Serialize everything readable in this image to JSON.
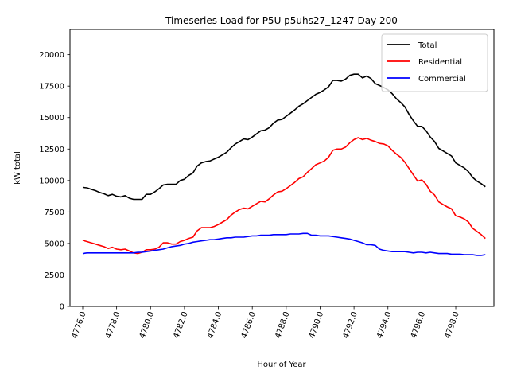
{
  "chart_data": {
    "type": "line",
    "title": "Timeseries Load for P5U p5uhs27_1247  Day 200",
    "xlabel": "Hour of Year",
    "ylabel": "kW total",
    "xlim": [
      4775.25,
      4800.25
    ],
    "ylim": [
      0,
      22000
    ],
    "x_ticks": [
      4776,
      4778,
      4780,
      4782,
      4784,
      4786,
      4788,
      4790,
      4792,
      4794,
      4796,
      4798
    ],
    "x_tick_labels": [
      "4776.0",
      "4778.0",
      "4780.0",
      "4782.0",
      "4784.0",
      "4786.0",
      "4788.0",
      "4790.0",
      "4792.0",
      "4794.0",
      "4796.0",
      "4798.0"
    ],
    "y_ticks": [
      0,
      2500,
      5000,
      7500,
      10000,
      12500,
      15000,
      17500,
      20000
    ],
    "y_tick_labels": [
      "0",
      "2500",
      "5000",
      "7500",
      "10000",
      "12500",
      "15000",
      "17500",
      "20000"
    ],
    "legend_position": "top-right",
    "series": [
      {
        "name": "Total",
        "color": "#000000",
        "points": [
          [
            4776.0,
            9450
          ],
          [
            4776.25,
            9420
          ],
          [
            4776.5,
            9300
          ],
          [
            4776.75,
            9200
          ],
          [
            4777.0,
            9050
          ],
          [
            4777.25,
            8950
          ],
          [
            4777.5,
            8800
          ],
          [
            4777.75,
            8900
          ],
          [
            4778.0,
            8750
          ],
          [
            4778.25,
            8700
          ],
          [
            4778.5,
            8800
          ],
          [
            4778.75,
            8600
          ],
          [
            4779.0,
            8500
          ],
          [
            4779.25,
            8500
          ],
          [
            4779.5,
            8500
          ],
          [
            4779.75,
            8900
          ],
          [
            4780.0,
            8900
          ],
          [
            4780.25,
            9100
          ],
          [
            4780.5,
            9350
          ],
          [
            4780.75,
            9650
          ],
          [
            4781.0,
            9700
          ],
          [
            4781.25,
            9700
          ],
          [
            4781.5,
            9700
          ],
          [
            4781.75,
            10000
          ],
          [
            4782.0,
            10100
          ],
          [
            4782.25,
            10400
          ],
          [
            4782.5,
            10600
          ],
          [
            4782.75,
            11150
          ],
          [
            4783.0,
            11400
          ],
          [
            4783.25,
            11500
          ],
          [
            4783.5,
            11550
          ],
          [
            4783.75,
            11700
          ],
          [
            4784.0,
            11850
          ],
          [
            4784.25,
            12050
          ],
          [
            4784.5,
            12250
          ],
          [
            4784.75,
            12600
          ],
          [
            4785.0,
            12900
          ],
          [
            4785.25,
            13100
          ],
          [
            4785.5,
            13300
          ],
          [
            4785.75,
            13250
          ],
          [
            4786.0,
            13450
          ],
          [
            4786.25,
            13700
          ],
          [
            4786.5,
            13950
          ],
          [
            4786.75,
            14000
          ],
          [
            4787.0,
            14200
          ],
          [
            4787.25,
            14550
          ],
          [
            4787.5,
            14800
          ],
          [
            4787.75,
            14850
          ],
          [
            4788.0,
            15100
          ],
          [
            4788.25,
            15350
          ],
          [
            4788.5,
            15600
          ],
          [
            4788.75,
            15900
          ],
          [
            4789.0,
            16100
          ],
          [
            4789.25,
            16350
          ],
          [
            4789.5,
            16600
          ],
          [
            4789.75,
            16850
          ],
          [
            4790.0,
            17000
          ],
          [
            4790.25,
            17200
          ],
          [
            4790.5,
            17450
          ],
          [
            4790.75,
            17950
          ],
          [
            4791.0,
            17950
          ],
          [
            4791.25,
            17900
          ],
          [
            4791.5,
            18050
          ],
          [
            4791.75,
            18350
          ],
          [
            4792.0,
            18450
          ],
          [
            4792.25,
            18450
          ],
          [
            4792.5,
            18150
          ],
          [
            4792.75,
            18300
          ],
          [
            4793.0,
            18100
          ],
          [
            4793.25,
            17700
          ],
          [
            4793.5,
            17550
          ],
          [
            4793.75,
            17400
          ],
          [
            4794.0,
            17200
          ],
          [
            4794.25,
            16900
          ],
          [
            4794.5,
            16500
          ],
          [
            4794.75,
            16200
          ],
          [
            4795.0,
            15850
          ],
          [
            4795.25,
            15250
          ],
          [
            4795.5,
            14750
          ],
          [
            4795.75,
            14300
          ],
          [
            4796.0,
            14300
          ],
          [
            4796.25,
            13950
          ],
          [
            4796.5,
            13450
          ],
          [
            4796.75,
            13100
          ],
          [
            4797.0,
            12550
          ],
          [
            4797.25,
            12350
          ],
          [
            4797.5,
            12150
          ],
          [
            4797.75,
            11950
          ],
          [
            4798.0,
            11400
          ],
          [
            4798.25,
            11200
          ],
          [
            4798.5,
            11000
          ],
          [
            4798.75,
            10700
          ],
          [
            4799.0,
            10250
          ],
          [
            4799.25,
            9950
          ],
          [
            4799.5,
            9750
          ],
          [
            4799.75,
            9500
          ]
        ]
      },
      {
        "name": "Residential",
        "color": "#ff0000",
        "points": [
          [
            4776.0,
            5250
          ],
          [
            4776.25,
            5150
          ],
          [
            4776.5,
            5050
          ],
          [
            4776.75,
            4950
          ],
          [
            4777.0,
            4850
          ],
          [
            4777.25,
            4750
          ],
          [
            4777.5,
            4600
          ],
          [
            4777.75,
            4700
          ],
          [
            4778.0,
            4550
          ],
          [
            4778.25,
            4500
          ],
          [
            4778.5,
            4550
          ],
          [
            4778.75,
            4400
          ],
          [
            4779.0,
            4250
          ],
          [
            4779.25,
            4200
          ],
          [
            4779.5,
            4300
          ],
          [
            4779.75,
            4500
          ],
          [
            4780.0,
            4500
          ],
          [
            4780.25,
            4550
          ],
          [
            4780.5,
            4700
          ],
          [
            4780.75,
            5050
          ],
          [
            4781.0,
            5050
          ],
          [
            4781.25,
            4950
          ],
          [
            4781.5,
            4950
          ],
          [
            4781.75,
            5150
          ],
          [
            4782.0,
            5250
          ],
          [
            4782.25,
            5400
          ],
          [
            4782.5,
            5500
          ],
          [
            4782.75,
            6000
          ],
          [
            4783.0,
            6250
          ],
          [
            4783.25,
            6250
          ],
          [
            4783.5,
            6250
          ],
          [
            4783.75,
            6350
          ],
          [
            4784.0,
            6500
          ],
          [
            4784.25,
            6700
          ],
          [
            4784.5,
            6900
          ],
          [
            4784.75,
            7250
          ],
          [
            4785.0,
            7500
          ],
          [
            4785.25,
            7700
          ],
          [
            4785.5,
            7800
          ],
          [
            4785.75,
            7750
          ],
          [
            4786.0,
            7950
          ],
          [
            4786.25,
            8150
          ],
          [
            4786.5,
            8350
          ],
          [
            4786.75,
            8300
          ],
          [
            4787.0,
            8550
          ],
          [
            4787.25,
            8850
          ],
          [
            4787.5,
            9100
          ],
          [
            4787.75,
            9150
          ],
          [
            4788.0,
            9350
          ],
          [
            4788.25,
            9600
          ],
          [
            4788.5,
            9850
          ],
          [
            4788.75,
            10150
          ],
          [
            4789.0,
            10300
          ],
          [
            4789.25,
            10650
          ],
          [
            4789.5,
            10950
          ],
          [
            4789.75,
            11250
          ],
          [
            4790.0,
            11400
          ],
          [
            4790.25,
            11550
          ],
          [
            4790.5,
            11850
          ],
          [
            4790.75,
            12400
          ],
          [
            4791.0,
            12500
          ],
          [
            4791.25,
            12500
          ],
          [
            4791.5,
            12650
          ],
          [
            4791.75,
            13000
          ],
          [
            4792.0,
            13250
          ],
          [
            4792.25,
            13400
          ],
          [
            4792.5,
            13250
          ],
          [
            4792.75,
            13350
          ],
          [
            4793.0,
            13200
          ],
          [
            4793.25,
            13100
          ],
          [
            4793.5,
            12950
          ],
          [
            4793.75,
            12900
          ],
          [
            4794.0,
            12750
          ],
          [
            4794.25,
            12400
          ],
          [
            4794.5,
            12100
          ],
          [
            4794.75,
            11850
          ],
          [
            4795.0,
            11450
          ],
          [
            4795.25,
            10950
          ],
          [
            4795.5,
            10450
          ],
          [
            4795.75,
            9950
          ],
          [
            4796.0,
            10050
          ],
          [
            4796.25,
            9700
          ],
          [
            4796.5,
            9150
          ],
          [
            4796.75,
            8850
          ],
          [
            4797.0,
            8300
          ],
          [
            4797.25,
            8100
          ],
          [
            4797.5,
            7900
          ],
          [
            4797.75,
            7750
          ],
          [
            4798.0,
            7200
          ],
          [
            4798.25,
            7100
          ],
          [
            4798.5,
            6950
          ],
          [
            4798.75,
            6700
          ],
          [
            4799.0,
            6200
          ],
          [
            4799.25,
            5950
          ],
          [
            4799.5,
            5700
          ],
          [
            4799.75,
            5400
          ]
        ]
      },
      {
        "name": "Commercial",
        "color": "#0000ff",
        "points": [
          [
            4776.0,
            4200
          ],
          [
            4776.25,
            4250
          ],
          [
            4776.5,
            4250
          ],
          [
            4776.75,
            4250
          ],
          [
            4777.0,
            4250
          ],
          [
            4777.25,
            4250
          ],
          [
            4777.5,
            4250
          ],
          [
            4777.75,
            4250
          ],
          [
            4778.0,
            4250
          ],
          [
            4778.25,
            4250
          ],
          [
            4778.5,
            4250
          ],
          [
            4778.75,
            4250
          ],
          [
            4779.0,
            4250
          ],
          [
            4779.25,
            4300
          ],
          [
            4779.5,
            4300
          ],
          [
            4779.75,
            4350
          ],
          [
            4780.0,
            4400
          ],
          [
            4780.25,
            4450
          ],
          [
            4780.5,
            4500
          ],
          [
            4780.75,
            4550
          ],
          [
            4781.0,
            4650
          ],
          [
            4781.25,
            4750
          ],
          [
            4781.5,
            4800
          ],
          [
            4781.75,
            4850
          ],
          [
            4782.0,
            4950
          ],
          [
            4782.25,
            5000
          ],
          [
            4782.5,
            5100
          ],
          [
            4782.75,
            5150
          ],
          [
            4783.0,
            5200
          ],
          [
            4783.25,
            5250
          ],
          [
            4783.5,
            5300
          ],
          [
            4783.75,
            5300
          ],
          [
            4784.0,
            5350
          ],
          [
            4784.25,
            5400
          ],
          [
            4784.5,
            5450
          ],
          [
            4784.75,
            5450
          ],
          [
            4785.0,
            5500
          ],
          [
            4785.25,
            5500
          ],
          [
            4785.5,
            5500
          ],
          [
            4785.75,
            5550
          ],
          [
            4786.0,
            5600
          ],
          [
            4786.25,
            5600
          ],
          [
            4786.5,
            5650
          ],
          [
            4786.75,
            5650
          ],
          [
            4787.0,
            5650
          ],
          [
            4787.25,
            5700
          ],
          [
            4787.5,
            5700
          ],
          [
            4787.75,
            5700
          ],
          [
            4788.0,
            5700
          ],
          [
            4788.25,
            5750
          ],
          [
            4788.5,
            5750
          ],
          [
            4788.75,
            5750
          ],
          [
            4789.0,
            5800
          ],
          [
            4789.25,
            5800
          ],
          [
            4789.5,
            5650
          ],
          [
            4789.75,
            5650
          ],
          [
            4790.0,
            5600
          ],
          [
            4790.25,
            5600
          ],
          [
            4790.5,
            5600
          ],
          [
            4790.75,
            5550
          ],
          [
            4791.0,
            5500
          ],
          [
            4791.25,
            5450
          ],
          [
            4791.5,
            5400
          ],
          [
            4791.75,
            5350
          ],
          [
            4792.0,
            5250
          ],
          [
            4792.25,
            5150
          ],
          [
            4792.5,
            5050
          ],
          [
            4792.75,
            4900
          ],
          [
            4793.0,
            4900
          ],
          [
            4793.25,
            4850
          ],
          [
            4793.5,
            4550
          ],
          [
            4793.75,
            4450
          ],
          [
            4794.0,
            4400
          ],
          [
            4794.25,
            4350
          ],
          [
            4794.5,
            4350
          ],
          [
            4794.75,
            4350
          ],
          [
            4795.0,
            4350
          ],
          [
            4795.25,
            4300
          ],
          [
            4795.5,
            4250
          ],
          [
            4795.75,
            4300
          ],
          [
            4796.0,
            4300
          ],
          [
            4796.25,
            4250
          ],
          [
            4796.5,
            4300
          ],
          [
            4796.75,
            4250
          ],
          [
            4797.0,
            4200
          ],
          [
            4797.25,
            4200
          ],
          [
            4797.5,
            4200
          ],
          [
            4797.75,
            4150
          ],
          [
            4798.0,
            4150
          ],
          [
            4798.25,
            4150
          ],
          [
            4798.5,
            4100
          ],
          [
            4798.75,
            4100
          ],
          [
            4799.0,
            4100
          ],
          [
            4799.25,
            4050
          ],
          [
            4799.5,
            4050
          ],
          [
            4799.75,
            4100
          ]
        ]
      }
    ]
  }
}
